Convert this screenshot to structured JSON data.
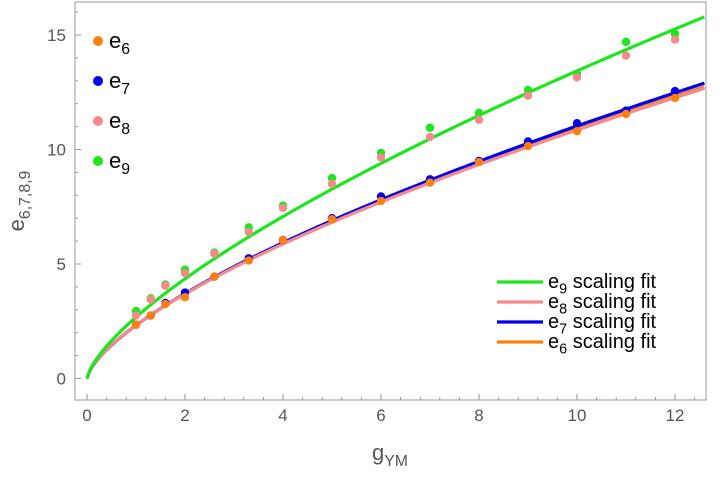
{
  "chart_data": {
    "type": "scatter",
    "title": "",
    "xlabel": {
      "base": "g",
      "sub": "YM"
    },
    "ylabel": {
      "base": "e",
      "sub": "6,7,8,9"
    },
    "xlim": [
      0,
      12.6
    ],
    "ylim": [
      -0.3,
      16.3
    ],
    "x_ticks": [
      0,
      2,
      4,
      6,
      8,
      10,
      12
    ],
    "y_ticks": [
      0,
      5,
      10,
      15
    ],
    "x_minor_step": 0.4,
    "y_minor_step": 1,
    "grid": false,
    "frame": true,
    "legend_points_position": "top-left",
    "legend_lines_position": "bottom-right",
    "series": [
      {
        "key": "e6",
        "label": {
          "base": "e",
          "sub": "6"
        },
        "color": "#ff7f0e",
        "x": [
          1.0,
          1.3,
          1.6,
          2.0,
          2.6,
          3.3,
          4.0,
          5.0,
          6.0,
          7.0,
          8.0,
          9.0,
          10.0,
          11.0,
          12.0
        ],
        "y": [
          2.35,
          2.75,
          3.25,
          3.55,
          4.45,
          5.15,
          6.05,
          6.95,
          7.75,
          8.55,
          9.45,
          10.15,
          10.8,
          11.55,
          12.25
        ]
      },
      {
        "key": "e7",
        "label": {
          "base": "e",
          "sub": "7"
        },
        "color": "#0000ee",
        "x": [
          1.0,
          1.3,
          1.6,
          2.0,
          2.6,
          3.3,
          4.0,
          5.0,
          6.0,
          7.0,
          8.0,
          9.0,
          10.0,
          11.0,
          12.0
        ],
        "y": [
          2.35,
          2.75,
          3.3,
          3.75,
          4.45,
          5.25,
          6.05,
          7.0,
          7.95,
          8.7,
          9.5,
          10.35,
          11.15,
          11.7,
          12.55
        ]
      },
      {
        "key": "e8",
        "label": {
          "base": "e",
          "sub": "8"
        },
        "color": "#f48a8a",
        "x": [
          1.0,
          1.3,
          1.6,
          2.0,
          2.6,
          3.3,
          4.0,
          5.0,
          6.0,
          7.0,
          8.0,
          9.0,
          10.0,
          11.0,
          12.0
        ],
        "y": [
          2.75,
          3.45,
          4.05,
          4.6,
          5.45,
          6.4,
          7.45,
          8.5,
          9.65,
          10.55,
          11.3,
          12.35,
          13.15,
          14.1,
          14.8
        ]
      },
      {
        "key": "e9",
        "label": {
          "base": "e",
          "sub": "9"
        },
        "color": "#1ee61e",
        "x": [
          1.0,
          1.3,
          1.6,
          2.0,
          2.6,
          3.3,
          4.0,
          5.0,
          6.0,
          7.0,
          8.0,
          9.0,
          10.0,
          11.0,
          12.0
        ],
        "y": [
          2.95,
          3.5,
          4.1,
          4.75,
          5.5,
          6.6,
          7.55,
          8.75,
          9.85,
          10.95,
          11.6,
          12.6,
          13.3,
          14.7,
          15.05
        ]
      }
    ],
    "fits": [
      {
        "key": "e9",
        "label": {
          "base": "e",
          "sub": "9",
          "rest": " scaling fit"
        },
        "color": "#1ee61e",
        "coef": 2.68,
        "exponent": 0.7
      },
      {
        "key": "e8",
        "label": {
          "base": "e",
          "sub": "8",
          "rest": " scaling fit"
        },
        "color": "#f48a8a",
        "coef": 2.32,
        "exponent": 0.67
      },
      {
        "key": "e7",
        "label": {
          "base": "e",
          "sub": "7",
          "rest": " scaling fit"
        },
        "color": "#0000ee",
        "coef": 2.32,
        "exponent": 0.677
      },
      {
        "key": "e6",
        "label": {
          "base": "e",
          "sub": "6",
          "rest": " scaling fit"
        },
        "color": "#ff7f0e",
        "coef": 2.32,
        "exponent": 0.672
      }
    ]
  }
}
